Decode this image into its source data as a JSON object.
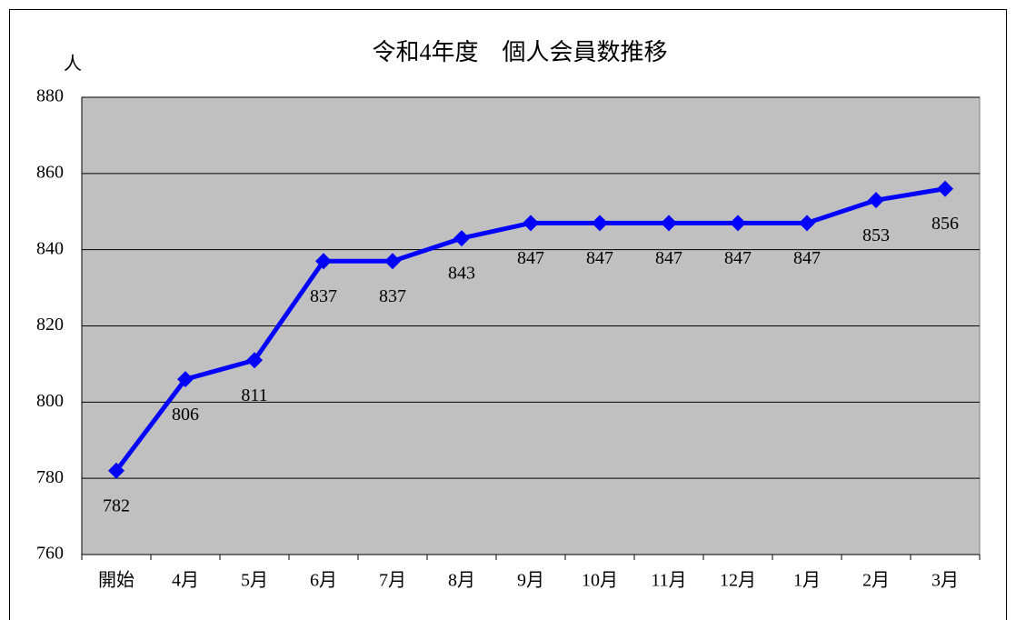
{
  "chart_data": {
    "type": "line",
    "title": "令和4年度　個人会員数推移",
    "y_label": "人",
    "categories": [
      "開始",
      "4月",
      "5月",
      "6月",
      "7月",
      "8月",
      "9月",
      "10月",
      "11月",
      "12月",
      "1月",
      "2月",
      "3月"
    ],
    "series": [
      {
        "name": "個人会員数",
        "color": "#0000ff",
        "values": [
          782,
          806,
          811,
          837,
          837,
          843,
          847,
          847,
          847,
          847,
          847,
          853,
          856
        ]
      }
    ],
    "ylim": [
      760,
      880
    ],
    "yticks": [
      760,
      780,
      800,
      820,
      840,
      860,
      880
    ],
    "grid": true,
    "legend": false,
    "plot_background": "#c0c0c0"
  }
}
